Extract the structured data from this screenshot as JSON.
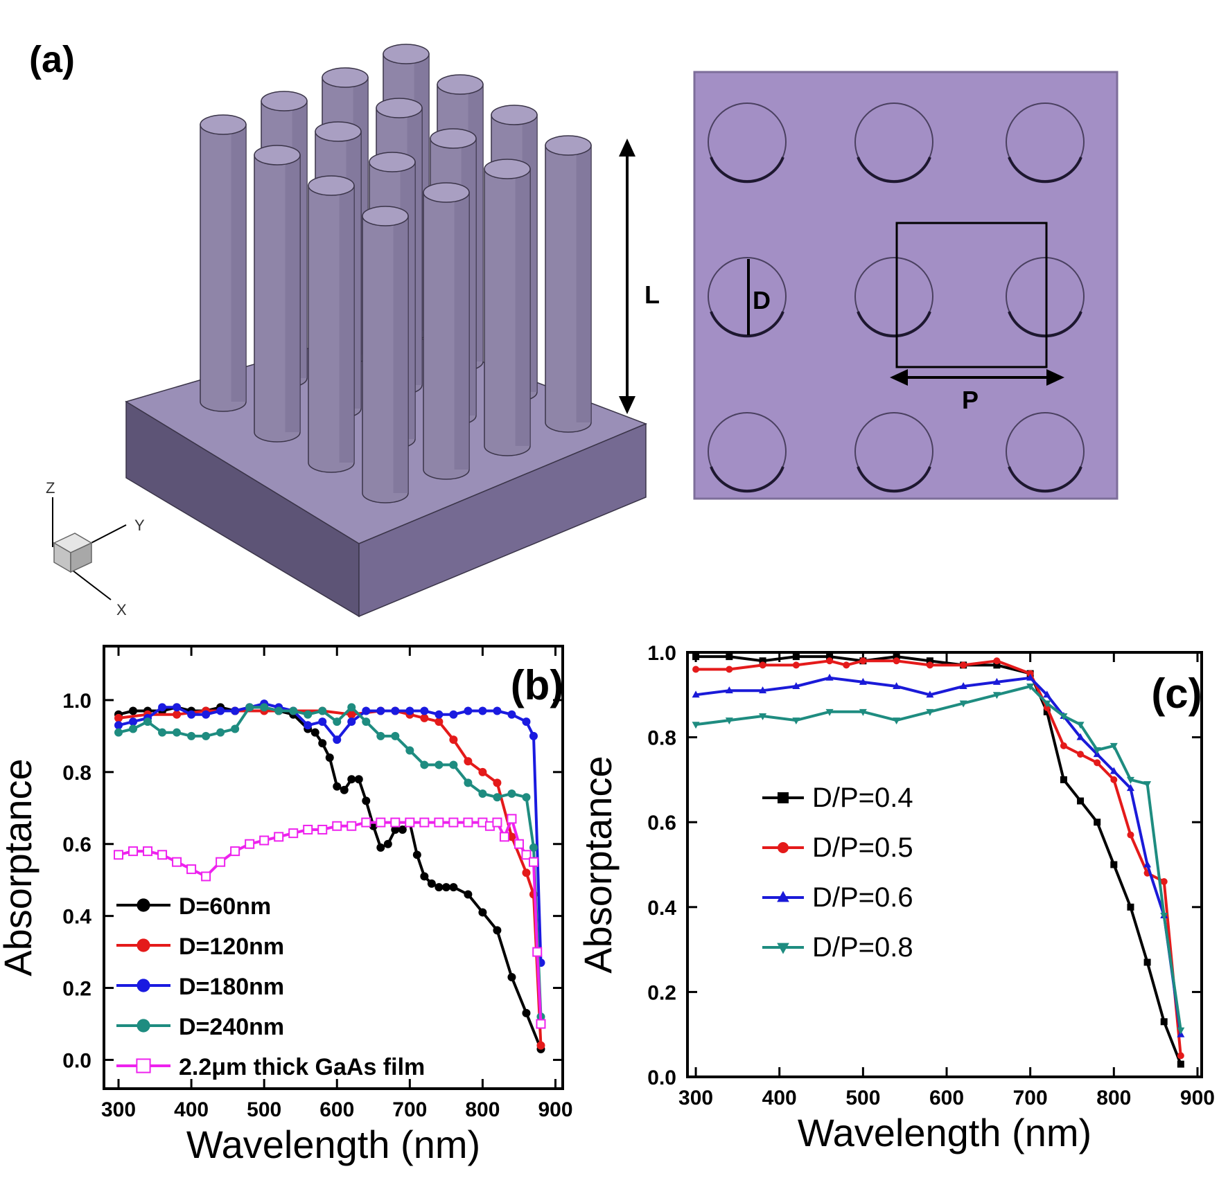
{
  "panel_a": {
    "label": "(a)",
    "length_label": "L",
    "diameter_label": "D",
    "period_label": "P",
    "axis_labels": {
      "z": "Z",
      "y": "Y",
      "x": "X"
    },
    "colors": {
      "rod": "#8f85a8",
      "rod_top": "#a99fc2",
      "rod_edge": "#3a3448",
      "base_top": "#9a8fb7",
      "base_front": "#756a92",
      "base_side": "#5d5476",
      "plate": "#a38fc5",
      "plate_border": "#7d6e9a"
    }
  },
  "chart_data": [
    {
      "type": "line",
      "panel_label": "(b)",
      "xlabel": "Wavelength (nm)",
      "ylabel": "Absorptance",
      "xlim": [
        280,
        910
      ],
      "ylim": [
        -0.08,
        1.15
      ],
      "xticks": [
        300,
        400,
        500,
        600,
        700,
        800,
        900
      ],
      "yticks": [
        0.0,
        0.2,
        0.4,
        0.6,
        0.8,
        1.0
      ],
      "xtick_labels": [
        "300",
        "400",
        "500",
        "600",
        "700",
        "800",
        "900"
      ],
      "ytick_labels": [
        "0.0",
        "0.2",
        "0.4",
        "0.6",
        "0.8",
        "1.0"
      ],
      "legend_position": "bottom-left",
      "series": [
        {
          "name": "D=60nm",
          "color": "#000000",
          "marker": "circle",
          "x": [
            300,
            320,
            340,
            360,
            380,
            400,
            420,
            440,
            460,
            480,
            500,
            520,
            540,
            560,
            570,
            580,
            590,
            600,
            610,
            620,
            630,
            640,
            650,
            660,
            670,
            680,
            690,
            700,
            710,
            720,
            730,
            740,
            750,
            760,
            780,
            800,
            820,
            840,
            860,
            880
          ],
          "y": [
            0.96,
            0.97,
            0.97,
            0.97,
            0.98,
            0.97,
            0.97,
            0.98,
            0.97,
            0.98,
            0.98,
            0.97,
            0.96,
            0.92,
            0.91,
            0.88,
            0.84,
            0.76,
            0.75,
            0.78,
            0.78,
            0.72,
            0.65,
            0.59,
            0.6,
            0.64,
            0.64,
            0.66,
            0.57,
            0.51,
            0.49,
            0.48,
            0.48,
            0.48,
            0.46,
            0.41,
            0.36,
            0.23,
            0.13,
            0.03
          ]
        },
        {
          "name": "D=120nm",
          "color": "#e41a1a",
          "marker": "circle",
          "x": [
            300,
            340,
            380,
            420,
            460,
            500,
            540,
            580,
            620,
            660,
            680,
            700,
            720,
            740,
            760,
            780,
            800,
            820,
            840,
            860,
            870,
            880
          ],
          "y": [
            0.95,
            0.96,
            0.96,
            0.97,
            0.97,
            0.97,
            0.97,
            0.97,
            0.96,
            0.97,
            0.97,
            0.96,
            0.95,
            0.94,
            0.89,
            0.83,
            0.8,
            0.77,
            0.62,
            0.52,
            0.46,
            0.04
          ]
        },
        {
          "name": "D=180nm",
          "color": "#1a1ae0",
          "marker": "circle",
          "x": [
            300,
            320,
            340,
            360,
            380,
            400,
            420,
            440,
            460,
            480,
            500,
            520,
            540,
            560,
            580,
            600,
            620,
            640,
            660,
            680,
            700,
            720,
            740,
            760,
            780,
            800,
            820,
            840,
            860,
            870,
            880
          ],
          "y": [
            0.93,
            0.94,
            0.95,
            0.98,
            0.98,
            0.96,
            0.96,
            0.97,
            0.97,
            0.98,
            0.99,
            0.98,
            0.97,
            0.93,
            0.94,
            0.89,
            0.94,
            0.97,
            0.97,
            0.97,
            0.97,
            0.97,
            0.96,
            0.96,
            0.97,
            0.97,
            0.97,
            0.96,
            0.94,
            0.9,
            0.27
          ]
        },
        {
          "name": "D=240nm",
          "color": "#1e8c80",
          "marker": "circle",
          "x": [
            300,
            320,
            340,
            360,
            380,
            400,
            420,
            440,
            460,
            480,
            500,
            520,
            540,
            560,
            580,
            600,
            620,
            640,
            660,
            680,
            700,
            720,
            740,
            760,
            780,
            800,
            820,
            840,
            860,
            870,
            880
          ],
          "y": [
            0.91,
            0.92,
            0.94,
            0.91,
            0.91,
            0.9,
            0.9,
            0.91,
            0.92,
            0.98,
            0.98,
            0.97,
            0.97,
            0.96,
            0.97,
            0.94,
            0.98,
            0.94,
            0.9,
            0.9,
            0.86,
            0.82,
            0.82,
            0.82,
            0.77,
            0.74,
            0.73,
            0.74,
            0.73,
            0.59,
            0.12
          ]
        },
        {
          "name": "2.2μm thick GaAs film",
          "color": "#ee22ee",
          "marker": "square-open",
          "x": [
            300,
            320,
            340,
            360,
            380,
            400,
            420,
            440,
            460,
            480,
            500,
            520,
            540,
            560,
            580,
            600,
            620,
            640,
            660,
            680,
            700,
            720,
            740,
            760,
            780,
            800,
            810,
            820,
            830,
            840,
            850,
            860,
            870,
            875,
            880
          ],
          "y": [
            0.57,
            0.58,
            0.58,
            0.57,
            0.55,
            0.53,
            0.51,
            0.55,
            0.58,
            0.6,
            0.61,
            0.62,
            0.63,
            0.64,
            0.64,
            0.65,
            0.65,
            0.66,
            0.66,
            0.66,
            0.66,
            0.66,
            0.66,
            0.66,
            0.66,
            0.66,
            0.65,
            0.66,
            0.62,
            0.67,
            0.6,
            0.57,
            0.55,
            0.3,
            0.1
          ]
        }
      ]
    },
    {
      "type": "line",
      "panel_label": "(c)",
      "xlabel": "Wavelength (nm)",
      "ylabel": "Absorptance",
      "xlim": [
        290,
        905
      ],
      "ylim": [
        0.0,
        1.0
      ],
      "xticks": [
        300,
        400,
        500,
        600,
        700,
        800,
        900
      ],
      "yticks": [
        0.0,
        0.2,
        0.4,
        0.6,
        0.8,
        1.0
      ],
      "xtick_labels": [
        "300",
        "400",
        "500",
        "600",
        "700",
        "800",
        "900"
      ],
      "ytick_labels": [
        "0.0",
        "0.2",
        "0.4",
        "0.6",
        "0.8",
        "1.0"
      ],
      "legend_position": "center-left",
      "series": [
        {
          "name": "D/P=0.4",
          "color": "#000000",
          "marker": "square",
          "x": [
            300,
            340,
            380,
            420,
            460,
            500,
            540,
            580,
            620,
            660,
            700,
            720,
            740,
            760,
            780,
            800,
            820,
            840,
            860,
            880
          ],
          "y": [
            0.99,
            0.99,
            0.98,
            0.99,
            0.99,
            0.98,
            0.99,
            0.98,
            0.97,
            0.97,
            0.95,
            0.86,
            0.7,
            0.65,
            0.6,
            0.5,
            0.4,
            0.27,
            0.13,
            0.03
          ]
        },
        {
          "name": "D/P=0.5",
          "color": "#e41a1a",
          "marker": "circle",
          "x": [
            300,
            340,
            380,
            420,
            460,
            480,
            500,
            540,
            580,
            620,
            660,
            700,
            720,
            740,
            760,
            780,
            800,
            820,
            840,
            860,
            880
          ],
          "y": [
            0.96,
            0.96,
            0.97,
            0.97,
            0.98,
            0.97,
            0.98,
            0.98,
            0.97,
            0.97,
            0.98,
            0.95,
            0.87,
            0.78,
            0.76,
            0.74,
            0.7,
            0.57,
            0.48,
            0.46,
            0.05
          ]
        },
        {
          "name": "D/P=0.6",
          "color": "#1a1ad8",
          "marker": "triangle-up",
          "x": [
            300,
            340,
            380,
            420,
            460,
            500,
            540,
            580,
            620,
            660,
            700,
            720,
            740,
            760,
            780,
            800,
            820,
            840,
            860,
            880
          ],
          "y": [
            0.9,
            0.91,
            0.91,
            0.92,
            0.94,
            0.93,
            0.92,
            0.9,
            0.92,
            0.93,
            0.94,
            0.9,
            0.85,
            0.8,
            0.76,
            0.72,
            0.68,
            0.5,
            0.38,
            0.1
          ]
        },
        {
          "name": "D/P=0.8",
          "color": "#1e8c80",
          "marker": "triangle-down",
          "x": [
            300,
            340,
            380,
            420,
            460,
            500,
            540,
            580,
            620,
            660,
            700,
            720,
            740,
            760,
            780,
            800,
            820,
            840,
            860,
            880
          ],
          "y": [
            0.83,
            0.84,
            0.85,
            0.84,
            0.86,
            0.86,
            0.84,
            0.86,
            0.88,
            0.9,
            0.92,
            0.88,
            0.85,
            0.83,
            0.77,
            0.78,
            0.7,
            0.69,
            0.38,
            0.11
          ]
        }
      ]
    }
  ]
}
